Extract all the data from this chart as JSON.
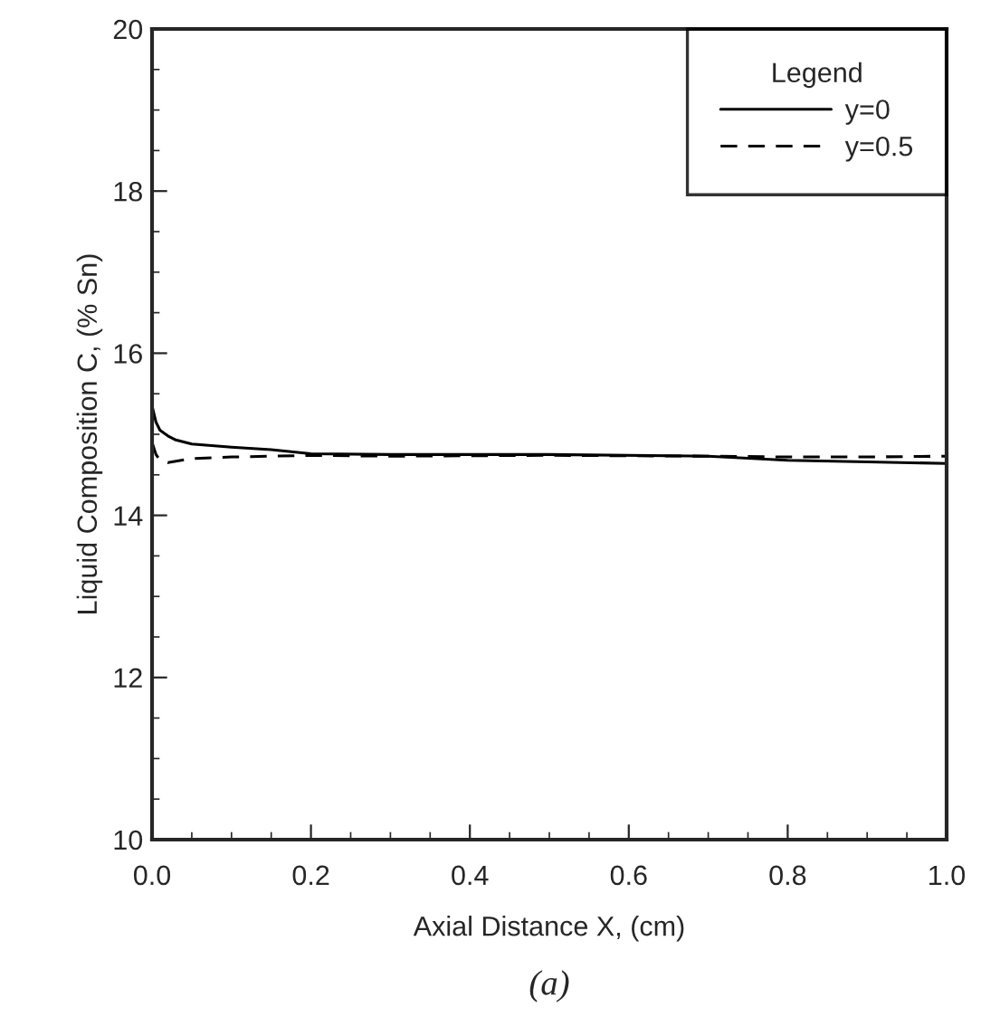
{
  "chart_data": {
    "type": "line",
    "xlabel": "Axial Distance X, (cm)",
    "ylabel": "Liquid Composition C, (% Sn)",
    "legend_title": "Legend",
    "legend": "top right",
    "grid": false,
    "marker": "none",
    "xlim": [
      0,
      1
    ],
    "ylim": [
      10,
      20
    ],
    "xticks": [
      {
        "value": 0,
        "label": "0.0"
      },
      0.2,
      0.4,
      0.6,
      0.8,
      {
        "value": 1,
        "label": "1.0"
      }
    ],
    "yticks": [
      10,
      12,
      14,
      16,
      18,
      20
    ],
    "annotations": [
      "(a)"
    ],
    "series": [
      {
        "name": "y=0",
        "color": "#000000",
        "line_style": "solid",
        "x": [
          0,
          0.005,
          0.01,
          0.02,
          0.03,
          0.05,
          0.1,
          0.15,
          0.2,
          0.3,
          0.5,
          0.7,
          0.8,
          0.9,
          1.0
        ],
        "values": [
          15.35,
          15.15,
          15.05,
          14.98,
          14.93,
          14.88,
          14.84,
          14.81,
          14.76,
          14.75,
          14.75,
          14.73,
          14.68,
          14.66,
          14.64
        ]
      },
      {
        "name": "y=0.5",
        "color": "#000000",
        "line_style": "dashed",
        "x": [
          0,
          0.005,
          0.01,
          0.02,
          0.05,
          0.1,
          0.2,
          0.3,
          0.5,
          0.7,
          0.8,
          0.9,
          1.0
        ],
        "values": [
          14.9,
          14.75,
          14.68,
          14.65,
          14.7,
          14.72,
          14.74,
          14.73,
          14.74,
          14.73,
          14.72,
          14.72,
          14.73
        ]
      }
    ]
  }
}
